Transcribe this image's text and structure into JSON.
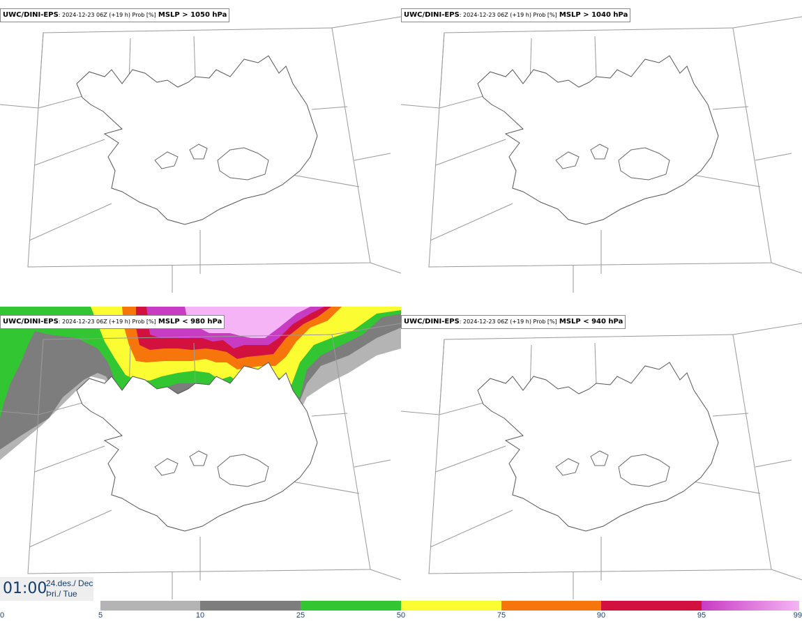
{
  "panels": [
    {
      "source": "UWC/DINI-EPS",
      "run": ": 2024-12-23 06Z (+19 h) Prob [%]",
      "variable": "MSLP > 1050 hPa"
    },
    {
      "source": "UWC/DINI-EPS",
      "run": ": 2024-12-23 06Z (+19 h) Prob [%]",
      "variable": "MSLP > 1040 hPa"
    },
    {
      "source": "UWC/DINI-EPS",
      "run": ": 2024-12-23 06Z (+19 h) Prob [%]",
      "variable": "MSLP < 980 hPa"
    },
    {
      "source": "UWC/DINI-EPS",
      "run": ": 2024-12-23 06Z (+19 h) Prob [%]",
      "variable": "MSLP < 940 hPa"
    }
  ],
  "valid_time": {
    "time": "01:00",
    "date": "24.des./ Dec",
    "weekday": "Þri./ Tue"
  },
  "legend": {
    "ticks": [
      "0",
      "5",
      "10",
      "25",
      "50",
      "75",
      "90",
      "95",
      "99"
    ],
    "bins": [
      {
        "from": 5,
        "to": 10,
        "color": "#b4b4b4"
      },
      {
        "from": 10,
        "to": 25,
        "color": "#7d7d7d"
      },
      {
        "from": 25,
        "to": 50,
        "color": "#33c633"
      },
      {
        "from": 50,
        "to": 75,
        "color": "#fcfc33"
      },
      {
        "from": 75,
        "to": 90,
        "color": "#f7760b"
      },
      {
        "from": 90,
        "to": 95,
        "color": "#d2113f"
      },
      {
        "from": 95,
        "to": 99,
        "color": "#c83cc3",
        "to_color": "#f5b4f5"
      }
    ]
  }
}
